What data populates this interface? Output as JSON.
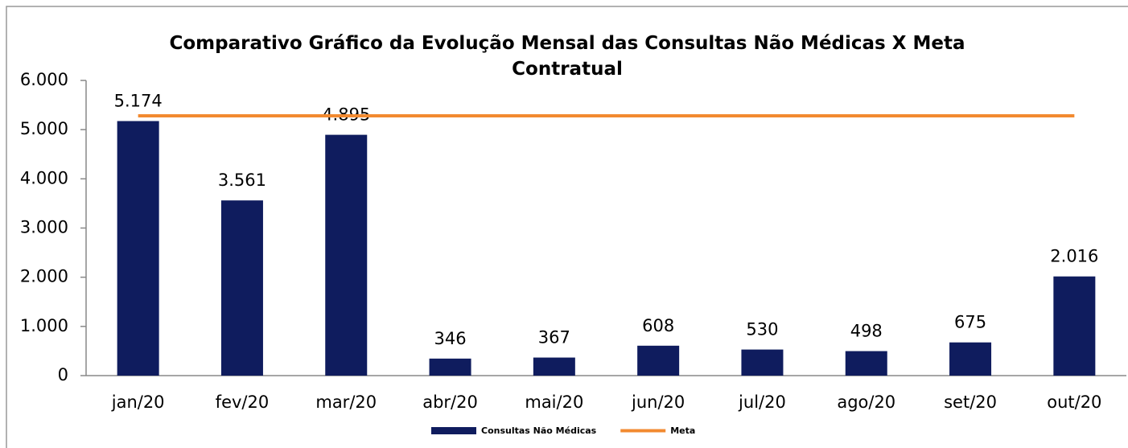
{
  "chart_data": {
    "type": "bar",
    "title": "Comparativo Gráfico da Evolução Mensal das Consultas Não Médicas X Meta Contratual",
    "categories": [
      "jan/20",
      "fev/20",
      "mar/20",
      "abr/20",
      "mai/20",
      "jun/20",
      "jul/20",
      "ago/20",
      "set/20",
      "out/20"
    ],
    "series": [
      {
        "name": "Consultas Não Médicas",
        "type": "bar",
        "color": "#0f1c5e",
        "values": [
          5174,
          3561,
          4895,
          346,
          367,
          608,
          530,
          498,
          675,
          2016
        ],
        "value_labels": [
          "5.174",
          "3.561",
          "4.895",
          "346",
          "367",
          "608",
          "530",
          "498",
          "675",
          "2.016"
        ]
      },
      {
        "name": "Meta",
        "type": "line",
        "color": "#f28a30",
        "values": [
          5280,
          5280,
          5280,
          5280,
          5280,
          5280,
          5280,
          5280,
          5280,
          5280
        ]
      }
    ],
    "ylim": [
      0,
      6000
    ],
    "yticks": [
      0,
      {
        "value": 1000,
        "label": "1.000"
      },
      {
        "value": 2000,
        "label": "2.000"
      },
      {
        "value": 3000,
        "label": "3.000"
      },
      {
        "value": 4000,
        "label": "4.000"
      },
      {
        "value": 5000,
        "label": "5.000"
      },
      {
        "value": 6000,
        "label": "6.000"
      }
    ],
    "legend": "bottom"
  }
}
